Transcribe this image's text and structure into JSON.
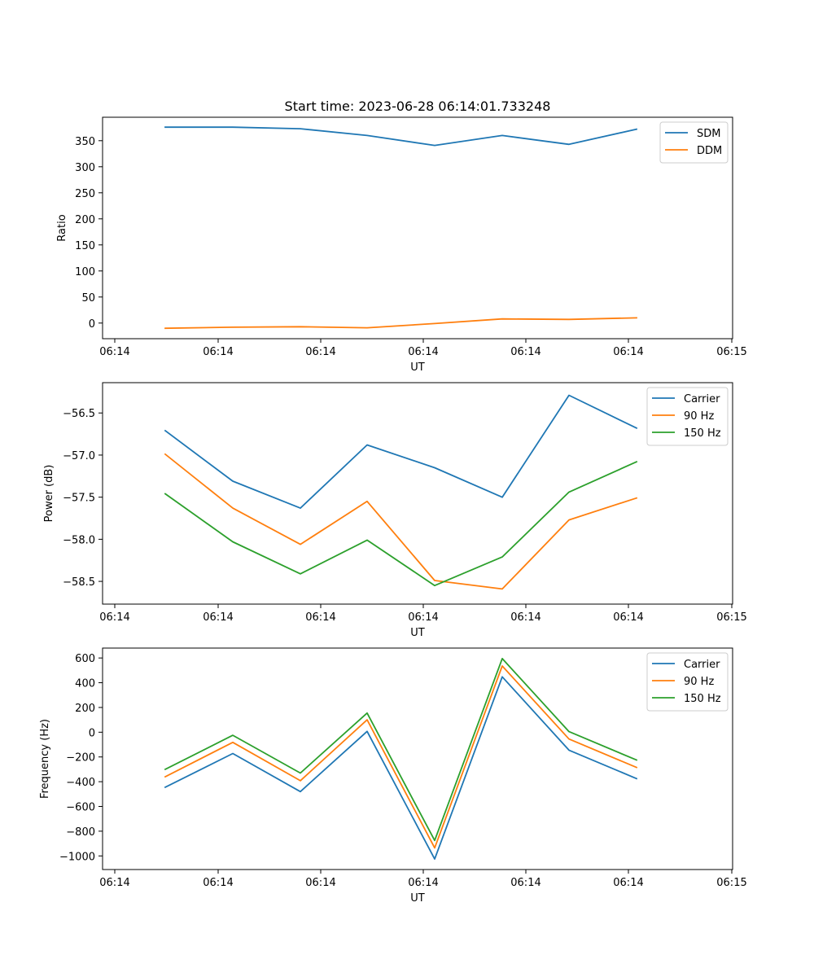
{
  "chart_data": [
    {
      "type": "line",
      "title": "Start time: 2023-06-28 06:14:01.733248",
      "xlabel": "UT",
      "ylabel": "Ratio",
      "x_tick_labels": [
        "06:14",
        "06:14",
        "06:14",
        "06:14",
        "06:14",
        "06:14",
        "06:14",
        "06:15"
      ],
      "y_ticks": [
        0,
        50,
        100,
        150,
        200,
        250,
        300,
        350
      ],
      "y_tick_labels": [
        "0",
        "50",
        "100",
        "150",
        "200",
        "250",
        "300",
        "350"
      ],
      "ylim": [
        -30,
        395
      ],
      "grid": false,
      "legend_position": "top-right",
      "series": [
        {
          "name": "SDM",
          "color": "#1f77b4",
          "values": [
            376,
            376,
            373,
            360,
            341,
            360,
            343,
            372
          ]
        },
        {
          "name": "DDM",
          "color": "#ff7f0e",
          "values": [
            -10,
            -8,
            -7,
            -9,
            -1,
            8,
            7,
            10
          ]
        }
      ]
    },
    {
      "type": "line",
      "title": "",
      "xlabel": "UT",
      "ylabel": "Power (dB)",
      "x_tick_labels": [
        "06:14",
        "06:14",
        "06:14",
        "06:14",
        "06:14",
        "06:14",
        "06:14",
        "06:15"
      ],
      "y_ticks": [
        -58.5,
        -58.0,
        -57.5,
        -57.0,
        -56.5
      ],
      "y_tick_labels": [
        "−58.5",
        "−58.0",
        "−57.5",
        "−57.0",
        "−56.5"
      ],
      "ylim": [
        -58.77,
        -56.14
      ],
      "grid": false,
      "legend_position": "top-right",
      "series": [
        {
          "name": "Carrier",
          "color": "#1f77b4",
          "values": [
            -56.71,
            -57.31,
            -57.63,
            -56.88,
            -57.15,
            -57.5,
            -56.29,
            -56.68
          ]
        },
        {
          "name": "90 Hz",
          "color": "#ff7f0e",
          "values": [
            -56.99,
            -57.63,
            -58.06,
            -57.55,
            -58.49,
            -58.59,
            -57.77,
            -57.51
          ]
        },
        {
          "name": "150 Hz",
          "color": "#2ca02c",
          "values": [
            -57.46,
            -58.03,
            -58.41,
            -58.01,
            -58.55,
            -58.21,
            -57.44,
            -57.08
          ]
        }
      ]
    },
    {
      "type": "line",
      "title": "",
      "xlabel": "UT",
      "ylabel": "Frequency (Hz)",
      "x_tick_labels": [
        "06:14",
        "06:14",
        "06:14",
        "06:14",
        "06:14",
        "06:14",
        "06:14",
        "06:15"
      ],
      "y_ticks": [
        -1000,
        -800,
        -600,
        -400,
        -200,
        0,
        200,
        400,
        600
      ],
      "y_tick_labels": [
        "−1000",
        "−800",
        "−600",
        "−400",
        "−200",
        "0",
        "200",
        "400",
        "600"
      ],
      "ylim": [
        -1110,
        680
      ],
      "grid": false,
      "legend_position": "top-right",
      "series": [
        {
          "name": "Carrier",
          "color": "#1f77b4",
          "values": [
            -445,
            -172,
            -480,
            7,
            -1025,
            448,
            -145,
            -375
          ]
        },
        {
          "name": "90 Hz",
          "color": "#ff7f0e",
          "values": [
            -360,
            -82,
            -392,
            100,
            -935,
            535,
            -55,
            -285
          ]
        },
        {
          "name": "150 Hz",
          "color": "#2ca02c",
          "values": [
            -300,
            -25,
            -330,
            155,
            -875,
            595,
            5,
            -225
          ]
        }
      ]
    }
  ]
}
